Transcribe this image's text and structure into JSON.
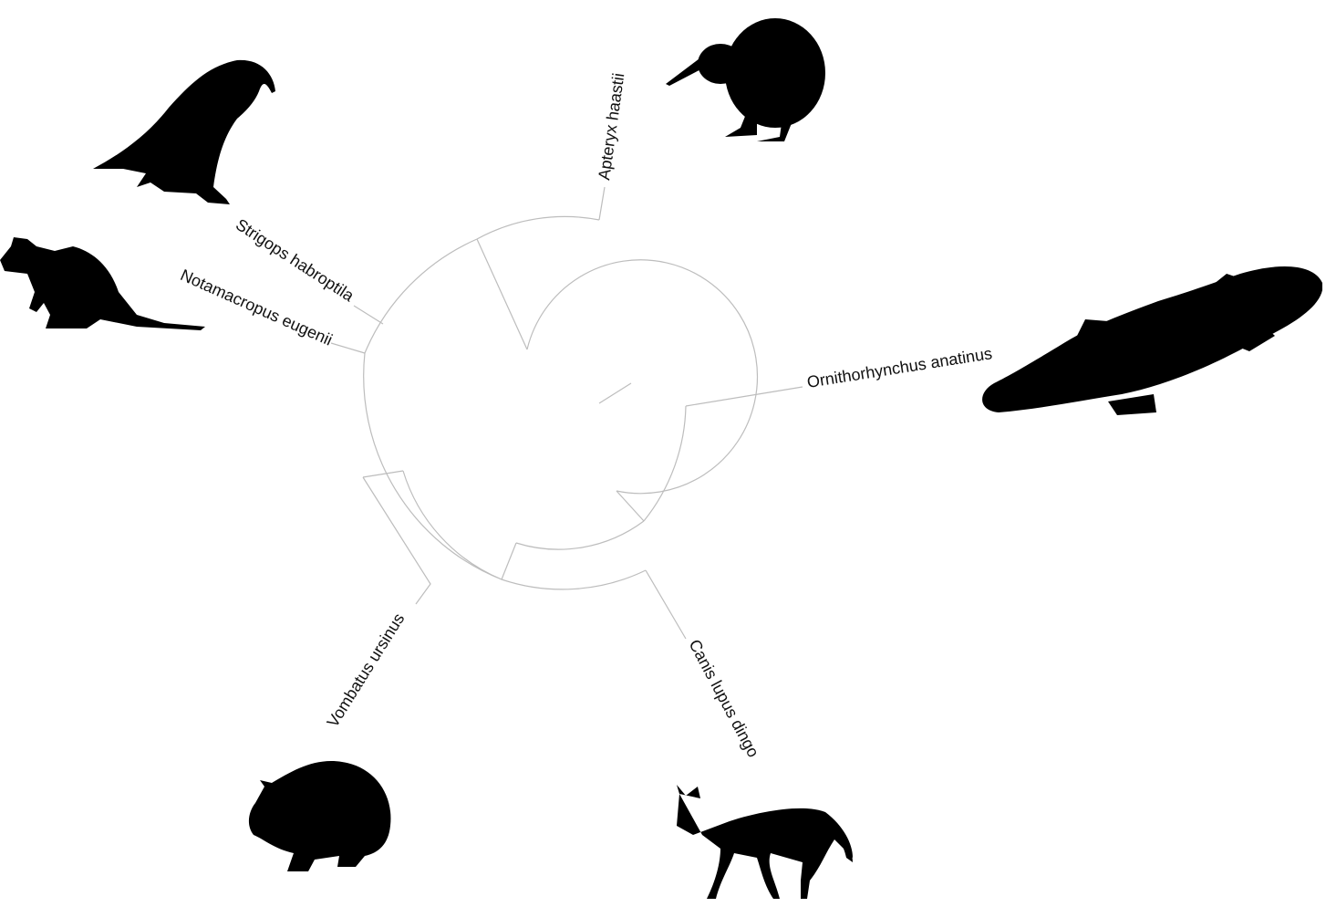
{
  "tree": {
    "layout": "circular",
    "tips": [
      {
        "id": "kiwi",
        "label": "Apteryx haastii",
        "silhouette": "kiwi-silhouette"
      },
      {
        "id": "platypus",
        "label": "Ornithorhynchus anatinus",
        "silhouette": "platypus-silhouette"
      },
      {
        "id": "dingo",
        "label": "Canis lupus dingo",
        "silhouette": "dingo-silhouette"
      },
      {
        "id": "wombat",
        "label": "Vombatus ursinus",
        "silhouette": "wombat-silhouette"
      },
      {
        "id": "wallaby",
        "label": "Notamacropus eugenii",
        "silhouette": "wallaby-silhouette"
      },
      {
        "id": "kakapo",
        "label": "Strigops habroptila",
        "silhouette": "kakapo-silhouette"
      }
    ]
  }
}
